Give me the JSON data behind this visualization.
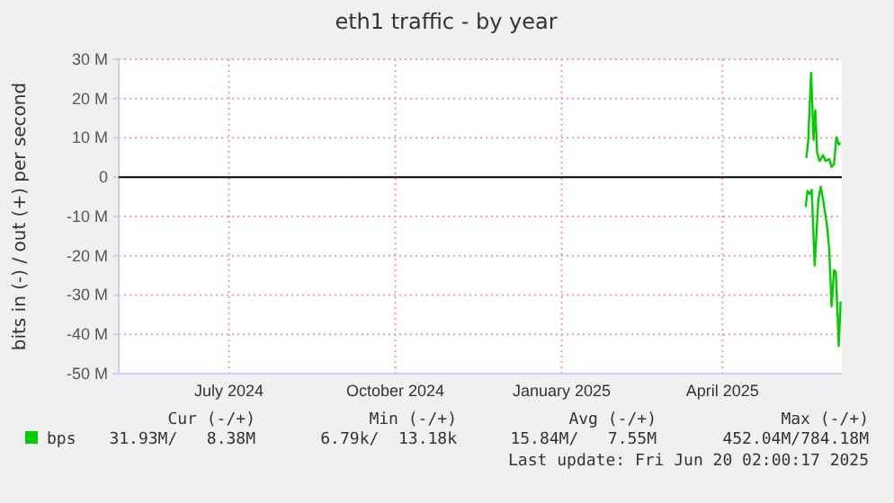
{
  "chart_data": {
    "type": "line",
    "title": "eth1 traffic - by year",
    "ylabel": "bits in (-) / out (+) per second",
    "xlim": [
      "2024-05-16",
      "2025-06-20"
    ],
    "xticks": [
      {
        "value": "2024-07-16",
        "label": "July 2024"
      },
      {
        "value": "2024-10-16",
        "label": "October 2024"
      },
      {
        "value": "2025-01-16",
        "label": "January 2025"
      },
      {
        "value": "2025-04-15",
        "label": "April 2025"
      }
    ],
    "ylim": [
      -50,
      30
    ],
    "yticks": [
      {
        "value": 30,
        "label": "30 M"
      },
      {
        "value": 20,
        "label": "20 M"
      },
      {
        "value": 10,
        "label": "10 M"
      },
      {
        "value": 0,
        "label": "0"
      },
      {
        "value": -10,
        "label": "-10 M"
      },
      {
        "value": -20,
        "label": "-20 M"
      },
      {
        "value": -30,
        "label": "-30 M"
      },
      {
        "value": -40,
        "label": "-40 M"
      },
      {
        "value": -50,
        "label": "-50 M"
      }
    ],
    "grid": true,
    "legend": "bottom",
    "ref_lines": [
      {
        "axis": "y",
        "value": 0,
        "color": "#000000"
      }
    ],
    "series": [
      {
        "name": "bps",
        "color": "#00cc00",
        "x": [
          "2025-05-31T08:00",
          "2025-06-01T08:00",
          "2025-06-03T00:00",
          "2025-06-03T16:00",
          "2025-06-04T08:00",
          "2025-06-05T08:00",
          "2025-06-06T08:00",
          "2025-06-07T16:00",
          "2025-06-09T16:00",
          "2025-06-11T00:00",
          "2025-06-13T00:00",
          "2025-06-14T08:00",
          "2025-06-15T16:00",
          "2025-06-17T00:00",
          "2025-06-18T08:00",
          "2025-06-19T08:00"
        ],
        "values": [
          4.9,
          8.7,
          26.5,
          18.6,
          9.5,
          17,
          6.4,
          4.1,
          5.6,
          4.1,
          4.6,
          2.6,
          3.3,
          10.2,
          8.3,
          8.7
        ]
      },
      {
        "color": "#00cc00",
        "x": [
          "2025-05-31T00:00",
          "2025-06-01T00:00",
          "2025-06-02T08:00",
          "2025-06-03T08:00",
          "2025-06-05T00:00",
          "2025-06-07T00:00",
          "2025-06-08T08:00",
          "2025-06-09T16:00",
          "2025-06-11T16:00",
          "2025-06-13T00:00",
          "2025-06-14T08:00",
          "2025-06-15T16:00",
          "2025-06-16T16:00",
          "2025-06-18T08:00",
          "2025-06-19T08:00"
        ],
        "values": [
          -7.6,
          -3.5,
          -4.3,
          -3.2,
          -22.5,
          -5.8,
          -2.4,
          -5.8,
          -11.9,
          -18,
          -32.9,
          -23.7,
          -24,
          -43,
          -31.6
        ]
      }
    ],
    "annotations": [
      "Cur (-/+)",
      "Min (-/+)",
      "Avg (-/+)",
      "Max (-/+)",
      "31.93M/   8.38M",
      "6.79k/  13.18k",
      "15.84M/   7.55M",
      "452.04M/784.18M",
      "Last update: Fri Jun 20 02:00:17 2025"
    ]
  }
}
